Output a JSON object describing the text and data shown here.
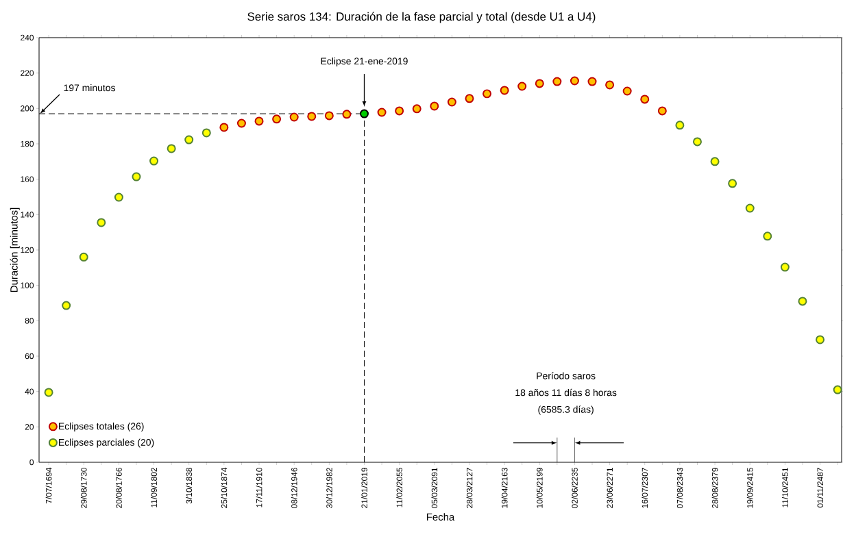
{
  "chart_data": {
    "type": "scatter",
    "title": "Serie saros 134:  Duración de la fase parcial y total (desde U1 a U4)",
    "xlabel": "Fecha",
    "ylabel": "Duración [minutos]",
    "categories": [
      "7/07/1694",
      null,
      "29/08/1730",
      null,
      "20/08/1766",
      null,
      "11/09/1802",
      null,
      "3/10/1838",
      null,
      "25/10/1874",
      null,
      "17/11/1910",
      null,
      "08/12/1946",
      null,
      "30/12/1982",
      null,
      "21/01/2019",
      null,
      "11/02/2055",
      null,
      "05/03/2091",
      null,
      "28/03/2127",
      null,
      "19/04/2163",
      null,
      "10/05/2199",
      null,
      "02/06/2235",
      null,
      "23/06/2271",
      null,
      "16/07/2307",
      null,
      "07/08/2343",
      null,
      "28/08/2379",
      null,
      "19/09/2415",
      null,
      "11/10/2451",
      null,
      "01/11/2487",
      null
    ],
    "series": [
      {
        "name": "Eclipses totales (26)",
        "color": "#ffc000",
        "values": [
          null,
          null,
          null,
          null,
          null,
          null,
          null,
          null,
          null,
          null,
          189.3,
          191.6,
          192.8,
          194,
          195.1,
          195.5,
          195.9,
          196.7,
          null,
          197.8,
          198.6,
          199.8,
          201.3,
          203.6,
          205.6,
          208.3,
          210.2,
          212.5,
          214.1,
          215.2,
          215.6,
          215.2,
          213.3,
          209.8,
          205.2,
          198.6,
          null,
          null,
          null,
          null,
          null,
          null,
          null,
          null,
          null,
          null
        ]
      },
      {
        "name": "Eclipses parciales (20)",
        "color": "#ffff00",
        "values": [
          39.5,
          88.6,
          116,
          135.5,
          149.8,
          161.4,
          170.3,
          177.3,
          182.3,
          186.2,
          null,
          null,
          null,
          null,
          null,
          null,
          null,
          null,
          null,
          null,
          null,
          null,
          null,
          null,
          null,
          null,
          null,
          null,
          null,
          null,
          null,
          null,
          null,
          null,
          null,
          null,
          190.5,
          181.2,
          170,
          157.6,
          143.6,
          127.8,
          110.3,
          91,
          69.3,
          41
        ]
      },
      {
        "color": "#00cc00",
        "values": [
          null,
          null,
          null,
          null,
          null,
          null,
          null,
          null,
          null,
          null,
          null,
          null,
          null,
          null,
          null,
          null,
          null,
          null,
          197,
          null,
          null,
          null,
          null,
          null,
          null,
          null,
          null,
          null,
          null,
          null,
          null,
          null,
          null,
          null,
          null,
          null,
          null,
          null,
          null,
          null,
          null,
          null,
          null,
          null,
          null,
          null
        ]
      }
    ],
    "ylim": [
      0,
      240
    ],
    "yticks": [
      0,
      20,
      40,
      60,
      80,
      100,
      120,
      140,
      160,
      180,
      200,
      220,
      240
    ],
    "ref_lines": [
      {
        "axis": "y",
        "value": 197,
        "label": "197 minutos",
        "line_style": "dashed"
      },
      {
        "axis": "x",
        "value": "21/01/2019",
        "line_style": "dashed"
      }
    ],
    "annotations": [
      "Eclipse 21-ene-2019",
      "Período saros",
      "18 años 11 días 8 horas",
      "(6585.3 días)"
    ],
    "marker": "circle",
    "grid": false,
    "legend": "bottom left"
  }
}
